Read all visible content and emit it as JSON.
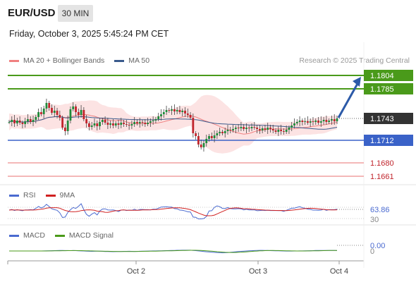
{
  "header": {
    "symbol": "EUR/USD",
    "timeframe": "30 MIN",
    "datetime": "Friday, October 3, 2025 5:45:24 PM CET",
    "credit": "Research © 2025 Trading Central"
  },
  "colors": {
    "resistance": "#4a9a1a",
    "support_major": "#3a62c8",
    "support_minor": "#f0a0a0",
    "bull": "#1f8a3a",
    "bear": "#c0242c",
    "bollinger_fill": "#fbdede",
    "ma20": "#f08080",
    "ma50": "#3a5a8c",
    "arrow": "#2c5aa8",
    "last": "#333333"
  },
  "chart_data": [
    {
      "type": "candlestick",
      "legend": [
        {
          "name": "MA 20 + Bollinger Bands",
          "color": "#f08080"
        },
        {
          "name": "MA 50",
          "color": "#3a5a8c"
        }
      ],
      "levels": [
        {
          "label": "1.1804",
          "value": 1.1804,
          "kind": "resistance"
        },
        {
          "label": "1.1785",
          "value": 1.1785,
          "kind": "resistance"
        },
        {
          "label": "1.1743",
          "value": 1.1743,
          "kind": "last"
        },
        {
          "label": "1.1712",
          "value": 1.1712,
          "kind": "support_major"
        },
        {
          "label": "1.1680",
          "value": 1.168,
          "kind": "support_minor"
        },
        {
          "label": "1.1661",
          "value": 1.1661,
          "kind": "support_minor"
        }
      ],
      "x_labels": [
        "Oct 2",
        "Oct 3",
        "Oct 4"
      ],
      "close": [
        1.1738,
        1.1741,
        1.1736,
        1.174,
        1.1737,
        1.1735,
        1.1739,
        1.1742,
        1.1738,
        1.1741,
        1.1745,
        1.1752,
        1.1749,
        1.1757,
        1.1765,
        1.1758,
        1.1751,
        1.1754,
        1.1748,
        1.1744,
        1.173,
        1.1725,
        1.174,
        1.1756,
        1.176,
        1.1752,
        1.1748,
        1.1755,
        1.1742,
        1.1736,
        1.1731,
        1.1733,
        1.1736,
        1.1732,
        1.1738,
        1.1741,
        1.1737,
        1.1734,
        1.1736,
        1.1733,
        1.1736,
        1.1734,
        1.1737,
        1.1735,
        1.1734,
        1.1733,
        1.1735,
        1.1738,
        1.1736,
        1.1738,
        1.1737,
        1.1735,
        1.1737,
        1.1739,
        1.174,
        1.1742,
        1.1746,
        1.1749,
        1.1752,
        1.1755,
        1.1754,
        1.1756,
        1.1753,
        1.1755,
        1.1752,
        1.1754,
        1.175,
        1.1748,
        1.1744,
        1.1722,
        1.1718,
        1.1706,
        1.1702,
        1.1708,
        1.1714,
        1.1718,
        1.1715,
        1.1719,
        1.1722,
        1.1724,
        1.1722,
        1.1725,
        1.1727,
        1.1726,
        1.1728,
        1.173,
        1.1729,
        1.1731,
        1.1728,
        1.173,
        1.1729,
        1.1731,
        1.173,
        1.1728,
        1.1726,
        1.1729,
        1.1727,
        1.173,
        1.1728,
        1.1726,
        1.1724,
        1.1727,
        1.1725,
        1.1724,
        1.1727,
        1.173,
        1.1733,
        1.1736,
        1.1738,
        1.174,
        1.1738,
        1.1739,
        1.1737,
        1.1739,
        1.1738,
        1.174,
        1.1737,
        1.1739,
        1.1741,
        1.1738,
        1.174,
        1.1742,
        1.1739,
        1.1743
      ],
      "indicators": [
        {
          "name": "RSI",
          "color": "#4a6ad0",
          "signal_name": "9MA",
          "signal_color": "#d02020",
          "value_label": "63.86",
          "lower_label": "30"
        },
        {
          "name": "MACD",
          "color": "#4a6ad0",
          "signal_name": "MACD Signal",
          "signal_color": "#4a9a1a",
          "value_label": "0.00",
          "lower_label": "0"
        }
      ]
    }
  ]
}
